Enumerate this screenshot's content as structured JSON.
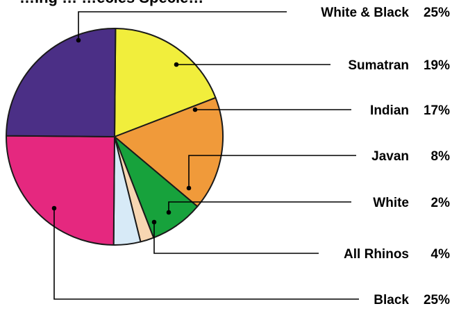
{
  "chart_data": {
    "type": "pie",
    "title": "…ing … …ecies Specie…",
    "slices": [
      {
        "label": "White & Black",
        "value": 25,
        "value_label": "25%",
        "color": "#4b2f86"
      },
      {
        "label": "Sumatran",
        "value": 19,
        "value_label": "19%",
        "color": "#f1ee3c"
      },
      {
        "label": "Indian",
        "value": 17,
        "value_label": "17%",
        "color": "#f09a3a"
      },
      {
        "label": "Javan",
        "value": 8,
        "value_label": "8%",
        "color": "#17a23c"
      },
      {
        "label": "White",
        "value": 2,
        "value_label": "2%",
        "color": "#f7d6b2"
      },
      {
        "label": "All Rhinos",
        "value": 4,
        "value_label": "4%",
        "color": "#d7eaf7"
      },
      {
        "label": "Black",
        "value": 25,
        "value_label": "25%",
        "color": "#e5287f"
      }
    ],
    "slice_order": [
      "Sumatran",
      "Indian",
      "Javan",
      "White",
      "All Rhinos",
      "Black",
      "White & Black"
    ],
    "legend": "right",
    "grid": false
  }
}
